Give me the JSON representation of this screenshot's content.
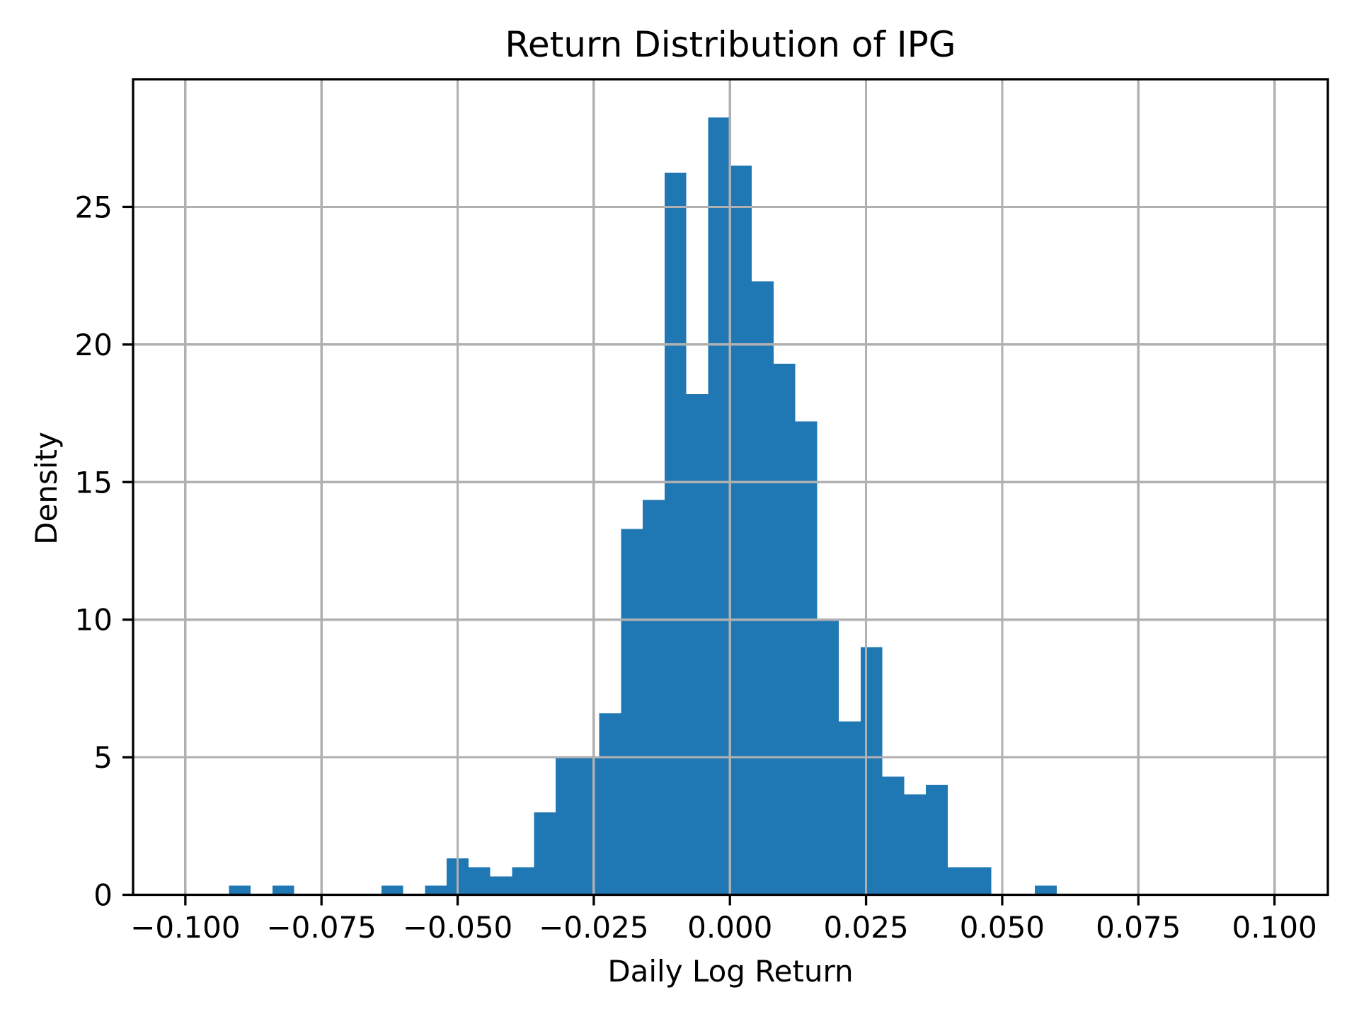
{
  "title": "Return Distribution of IPG",
  "chart_data": {
    "type": "bar",
    "subtype": "histogram",
    "title": "Return Distribution of IPG",
    "xlabel": "Daily Log Return",
    "ylabel": "Density",
    "bin_start": -0.092,
    "bin_width": 0.004,
    "densities": [
      0.33,
      0,
      0.33,
      0,
      0,
      0,
      0,
      0.33,
      0,
      0.33,
      1.33,
      1.0,
      0.67,
      1.0,
      3.0,
      5.0,
      5.0,
      6.6,
      13.3,
      14.35,
      26.25,
      18.2,
      28.25,
      26.5,
      22.3,
      19.3,
      17.2,
      10.0,
      6.3,
      9.0,
      4.3,
      3.65,
      4.0,
      1.0,
      1.0,
      0,
      0,
      0.33
    ],
    "xlim": [
      -0.1096,
      0.1098
    ],
    "ylim": [
      0,
      29.64
    ],
    "x_ticks": [
      -0.1,
      -0.075,
      -0.05,
      -0.025,
      0.0,
      0.025,
      0.05,
      0.075,
      0.1
    ],
    "x_tick_labels": [
      "−0.100",
      "−0.075",
      "−0.050",
      "−0.025",
      "0.000",
      "0.025",
      "0.050",
      "0.075",
      "0.100"
    ],
    "y_ticks": [
      0,
      5,
      10,
      15,
      20,
      25
    ],
    "y_tick_labels": [
      "0",
      "5",
      "10",
      "15",
      "20",
      "25"
    ],
    "grid": true,
    "grid_above_bars": true,
    "legend": null,
    "colors": {
      "bar": "#1f77b4",
      "grid": "#b0b0b0",
      "spine": "#000000",
      "tick": "#000000",
      "text": "#000000",
      "background": "#ffffff"
    }
  }
}
